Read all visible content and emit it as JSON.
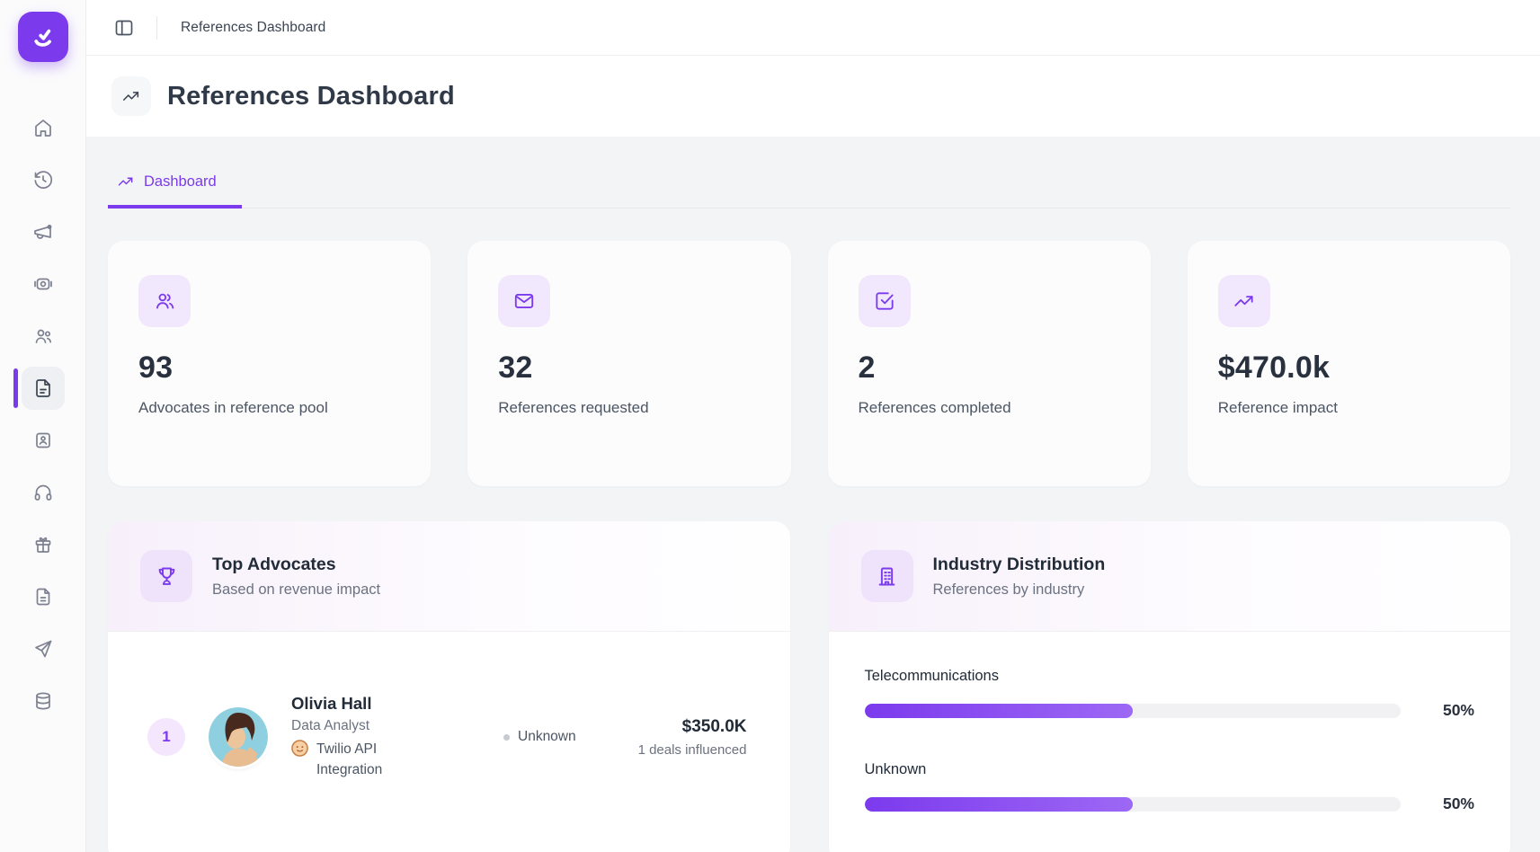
{
  "colors": {
    "accent": "#7c3aed",
    "accent_soft": "#f3e8ff",
    "bar_gradient_start": "#7c3aed",
    "bar_gradient_end": "#9d68f5",
    "page_background": "#f3f4f6"
  },
  "sidebar": {
    "logo": "smile-check-logo",
    "icons": [
      "home",
      "clock-history",
      "megaphone",
      "camera",
      "users",
      "file-document",
      "id-card",
      "headset",
      "gift",
      "file",
      "paper-plane",
      "stack"
    ],
    "active_icon": "file-document"
  },
  "topbar": {
    "breadcrumb": "References Dashboard"
  },
  "header": {
    "title": "References Dashboard"
  },
  "tabs": {
    "dashboard": "Dashboard"
  },
  "stats": [
    {
      "icon": "users-icon",
      "value": "93",
      "label": "Advocates in reference pool"
    },
    {
      "icon": "mail-icon",
      "value": "32",
      "label": "References requested"
    },
    {
      "icon": "check-square-icon",
      "value": "2",
      "label": "References completed"
    },
    {
      "icon": "trending-up-icon",
      "value": "$470.0k",
      "label": "Reference impact"
    }
  ],
  "top_advocates": {
    "title": "Top Advocates",
    "subtitle": "Based on revenue impact",
    "rows": [
      {
        "rank": "1",
        "name": "Olivia Hall",
        "role": "Data Analyst",
        "company": "Twilio API Integration",
        "status": "Unknown",
        "revenue": "$350.0K",
        "deals": "1 deals influenced"
      }
    ]
  },
  "industry_distribution": {
    "title": "Industry Distribution",
    "subtitle": "References by industry",
    "chart_data": {
      "type": "bar",
      "orientation": "horizontal",
      "categories": [
        "Telecommunications",
        "Unknown"
      ],
      "values": [
        50,
        50
      ],
      "value_labels": [
        "50%",
        "50%"
      ],
      "xlim": [
        0,
        100
      ],
      "title": "Industry Distribution",
      "subtitle": "References by industry"
    }
  }
}
